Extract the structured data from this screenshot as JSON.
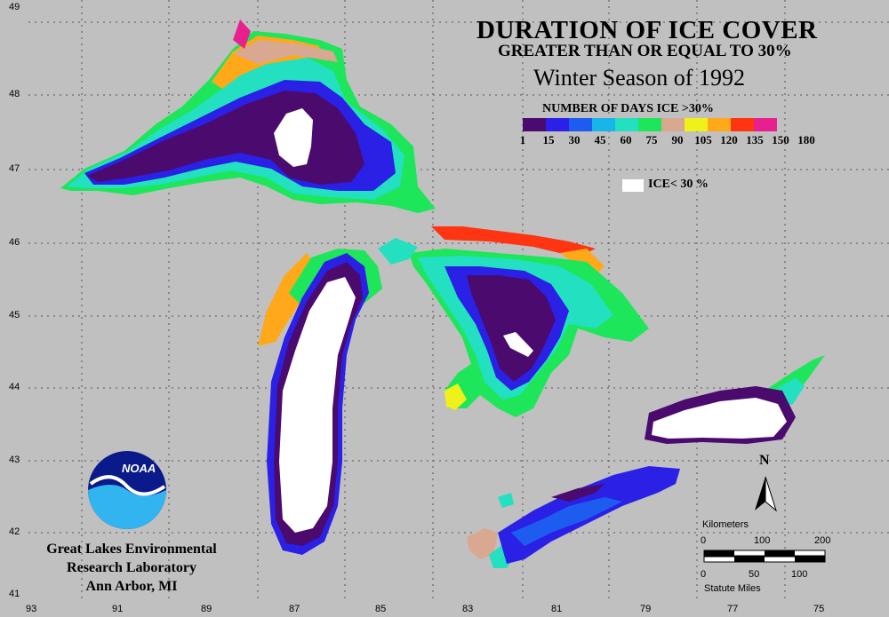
{
  "title_line1": "DURATION OF ICE COVER",
  "title_line2": "GREATER THAN OR EQUAL TO 30%",
  "title_line3": "Winter Season of 1992",
  "legend": {
    "title": "NUMBER OF DAYS ICE >30%",
    "colors": [
      "#4b0a6e",
      "#2a20e6",
      "#1e5cf0",
      "#18b6e8",
      "#22e0c0",
      "#1ee65a",
      "#d8a890",
      "#f0f01a",
      "#ffa81a",
      "#ff3410",
      "#e8208e"
    ],
    "ticks": [
      "1",
      "15",
      "30",
      "45",
      "60",
      "75",
      "90",
      "105",
      "120",
      "135",
      "150",
      "180"
    ],
    "ice_label": "ICE< 30 %"
  },
  "latitudes": [
    "49",
    "48",
    "47",
    "46",
    "45",
    "44",
    "43",
    "42",
    "41"
  ],
  "longitudes": [
    "93",
    "91",
    "89",
    "87",
    "85",
    "83",
    "81",
    "79",
    "77",
    "75"
  ],
  "logo_text": "NOAA",
  "org": {
    "line1": "Great Lakes Environmental",
    "line2": "Research Laboratory",
    "line3": "Ann Arbor, MI"
  },
  "scale": {
    "km_label": "Kilometers",
    "km_ticks": [
      "0",
      "100",
      "200"
    ],
    "mi_ticks": [
      "0",
      "50",
      "100"
    ],
    "mi_label": "Statute Miles"
  },
  "north": "N"
}
